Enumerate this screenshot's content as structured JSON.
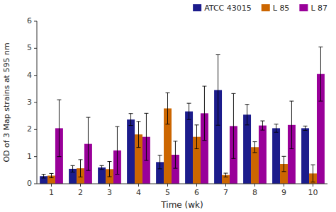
{
  "chart_data": {
    "type": "bar",
    "xlabel": "Time (wk)",
    "ylabel": "OD of 3 Map strains at 595 nm",
    "categories": [
      1,
      2,
      3,
      4,
      5,
      6,
      7,
      8,
      9,
      10
    ],
    "series": [
      {
        "name": "ATCC 43015",
        "color": "#1c1c8c",
        "values": [
          0.28,
          0.55,
          0.6,
          2.37,
          0.8,
          2.67,
          3.46,
          2.55,
          2.05,
          2.05
        ],
        "errors": [
          0.07,
          0.12,
          0.07,
          0.22,
          0.25,
          0.3,
          1.3,
          0.38,
          0.15,
          0.08
        ]
      },
      {
        "name": "L 85",
        "color": "#cc6600",
        "values": [
          0.3,
          0.57,
          0.54,
          1.82,
          2.78,
          1.73,
          0.32,
          1.35,
          0.73,
          0.38
        ],
        "errors": [
          0.08,
          0.32,
          0.28,
          0.48,
          0.58,
          0.44,
          0.07,
          0.2,
          0.28,
          0.32
        ]
      },
      {
        "name": "L 87",
        "color": "#990099",
        "values": [
          2.05,
          1.47,
          1.23,
          1.73,
          1.07,
          2.6,
          2.13,
          2.15,
          2.17,
          4.05
        ],
        "errors": [
          1.05,
          0.98,
          0.88,
          0.87,
          0.5,
          1.0,
          1.2,
          0.17,
          0.88,
          1.0
        ]
      }
    ],
    "ylim": [
      0,
      6
    ],
    "yticks": [
      0,
      1,
      2,
      3,
      4,
      5,
      6
    ],
    "legend": "upper-right",
    "grid": false
  }
}
